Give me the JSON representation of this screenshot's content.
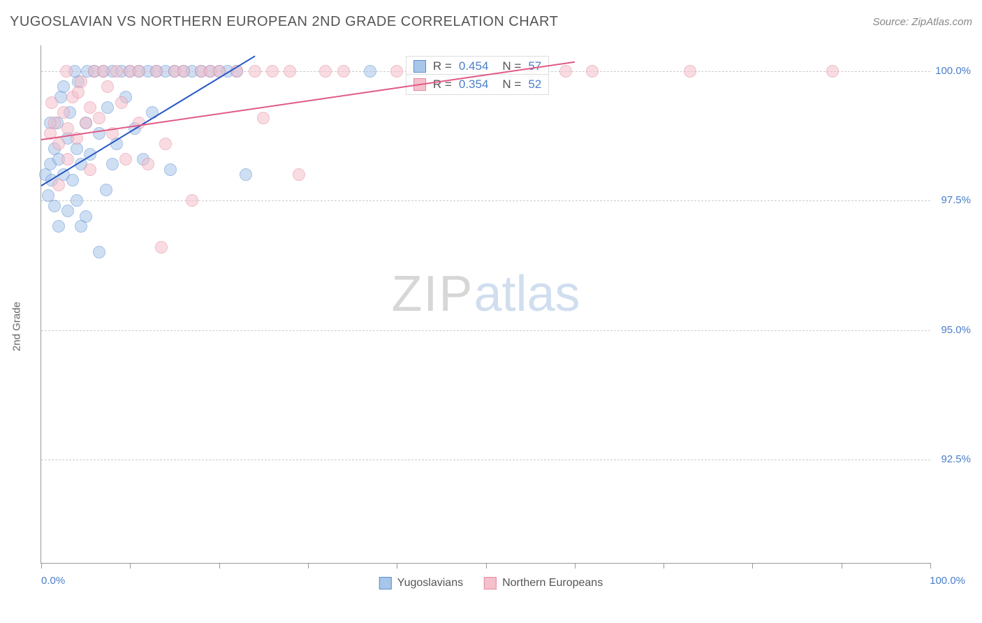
{
  "header": {
    "title": "YUGOSLAVIAN VS NORTHERN EUROPEAN 2ND GRADE CORRELATION CHART",
    "source": "Source: ZipAtlas.com"
  },
  "chart": {
    "type": "scatter",
    "y_axis_label": "2nd Grade",
    "x_range": [
      0,
      100
    ],
    "y_range": [
      90.5,
      100.5
    ],
    "x_ticks": [
      0,
      10,
      20,
      30,
      40,
      50,
      60,
      70,
      80,
      90,
      100
    ],
    "y_ticks": [
      92.5,
      95.0,
      97.5,
      100.0
    ],
    "y_tick_labels": [
      "92.5%",
      "95.0%",
      "97.5%",
      "100.0%"
    ],
    "x_start_label": "0.0%",
    "x_end_label": "100.0%",
    "grid_color": "#cccccc",
    "axis_color": "#999999",
    "text_color": "#666666",
    "value_color": "#4a7ec9",
    "background_color": "#ffffff",
    "marker_radius": 9,
    "marker_opacity": 0.55,
    "series": [
      {
        "name": "Yugoslavians",
        "color_fill": "#a8c5ea",
        "color_stroke": "#5b8fd1",
        "r_value": "0.454",
        "n_value": "57",
        "trend": {
          "x1": 0,
          "y1": 97.8,
          "x2": 24,
          "y2": 100.3,
          "color": "#2456c4",
          "width": 2
        },
        "points": [
          [
            0.5,
            98.0
          ],
          [
            1.0,
            98.2
          ],
          [
            1.2,
            97.9
          ],
          [
            1.5,
            98.5
          ],
          [
            1.8,
            99.0
          ],
          [
            2.0,
            98.3
          ],
          [
            2.2,
            99.5
          ],
          [
            2.5,
            98.0
          ],
          [
            3.0,
            98.7
          ],
          [
            3.2,
            99.2
          ],
          [
            3.5,
            97.9
          ],
          [
            4.0,
            98.5
          ],
          [
            4.2,
            99.8
          ],
          [
            4.5,
            98.2
          ],
          [
            5.0,
            99.0
          ],
          [
            5.5,
            98.4
          ],
          [
            6.0,
            100.0
          ],
          [
            6.5,
            98.8
          ],
          [
            7.0,
            100.0
          ],
          [
            7.3,
            97.7
          ],
          [
            7.5,
            99.3
          ],
          [
            8.0,
            100.0
          ],
          [
            8.5,
            98.6
          ],
          [
            9.0,
            100.0
          ],
          [
            9.5,
            99.5
          ],
          [
            10.0,
            100.0
          ],
          [
            10.5,
            98.9
          ],
          [
            11.0,
            100.0
          ],
          [
            12.0,
            100.0
          ],
          [
            12.5,
            99.2
          ],
          [
            13.0,
            100.0
          ],
          [
            14.0,
            100.0
          ],
          [
            14.5,
            98.1
          ],
          [
            15.0,
            100.0
          ],
          [
            16.0,
            100.0
          ],
          [
            17.0,
            100.0
          ],
          [
            18.0,
            100.0
          ],
          [
            19.0,
            100.0
          ],
          [
            20.0,
            100.0
          ],
          [
            21.0,
            100.0
          ],
          [
            3.0,
            97.3
          ],
          [
            4.0,
            97.5
          ],
          [
            5.0,
            97.2
          ],
          [
            2.0,
            97.0
          ],
          [
            1.5,
            97.4
          ],
          [
            8.0,
            98.2
          ],
          [
            6.5,
            96.5
          ],
          [
            23.0,
            98.0
          ],
          [
            22.0,
            100.0
          ],
          [
            2.5,
            99.7
          ],
          [
            3.8,
            100.0
          ],
          [
            5.2,
            100.0
          ],
          [
            1.0,
            99.0
          ],
          [
            0.8,
            97.6
          ],
          [
            4.5,
            97.0
          ],
          [
            11.5,
            98.3
          ],
          [
            37.0,
            100.0
          ]
        ]
      },
      {
        "name": "Northern Europeans",
        "color_fill": "#f4c0cc",
        "color_stroke": "#e388a0",
        "r_value": "0.354",
        "n_value": "52",
        "trend": {
          "x1": 0,
          "y1": 98.7,
          "x2": 60,
          "y2": 100.2,
          "color": "#e05a85",
          "width": 2
        },
        "points": [
          [
            1.0,
            98.8
          ],
          [
            1.5,
            99.0
          ],
          [
            2.0,
            98.6
          ],
          [
            2.5,
            99.2
          ],
          [
            3.0,
            98.9
          ],
          [
            3.5,
            99.5
          ],
          [
            4.0,
            98.7
          ],
          [
            4.5,
            99.8
          ],
          [
            5.0,
            99.0
          ],
          [
            5.5,
            99.3
          ],
          [
            6.0,
            100.0
          ],
          [
            6.5,
            99.1
          ],
          [
            7.0,
            100.0
          ],
          [
            8.0,
            98.8
          ],
          [
            8.5,
            100.0
          ],
          [
            9.0,
            99.4
          ],
          [
            10.0,
            100.0
          ],
          [
            11.0,
            100.0
          ],
          [
            12.0,
            98.2
          ],
          [
            13.0,
            100.0
          ],
          [
            14.0,
            98.6
          ],
          [
            15.0,
            100.0
          ],
          [
            16.0,
            100.0
          ],
          [
            17.0,
            97.5
          ],
          [
            18.0,
            100.0
          ],
          [
            19.0,
            100.0
          ],
          [
            20.0,
            100.0
          ],
          [
            22.0,
            100.0
          ],
          [
            24.0,
            100.0
          ],
          [
            26.0,
            100.0
          ],
          [
            28.0,
            100.0
          ],
          [
            29.0,
            98.0
          ],
          [
            32.0,
            100.0
          ],
          [
            40.0,
            100.0
          ],
          [
            55.0,
            100.0
          ],
          [
            59.0,
            100.0
          ],
          [
            62.0,
            100.0
          ],
          [
            73.0,
            100.0
          ],
          [
            89.0,
            100.0
          ],
          [
            2.0,
            97.8
          ],
          [
            3.0,
            98.3
          ],
          [
            5.5,
            98.1
          ],
          [
            9.5,
            98.3
          ],
          [
            1.2,
            99.4
          ],
          [
            2.8,
            100.0
          ],
          [
            4.2,
            99.6
          ],
          [
            7.5,
            99.7
          ],
          [
            11.0,
            99.0
          ],
          [
            13.5,
            96.6
          ],
          [
            25.0,
            99.1
          ],
          [
            34.0,
            100.0
          ],
          [
            42.0,
            100.0
          ]
        ]
      }
    ],
    "stats_boxes": [
      {
        "series_index": 0,
        "top_pct": 2.0
      },
      {
        "series_index": 1,
        "top_pct": 5.5
      }
    ],
    "watermark": {
      "part1": "ZIP",
      "part2": "atlas"
    }
  },
  "bottom_legend": {
    "items": [
      {
        "label": "Yugoslavians",
        "fill": "#a8c5ea",
        "stroke": "#5b8fd1"
      },
      {
        "label": "Northern Europeans",
        "fill": "#f4c0cc",
        "stroke": "#e388a0"
      }
    ]
  }
}
